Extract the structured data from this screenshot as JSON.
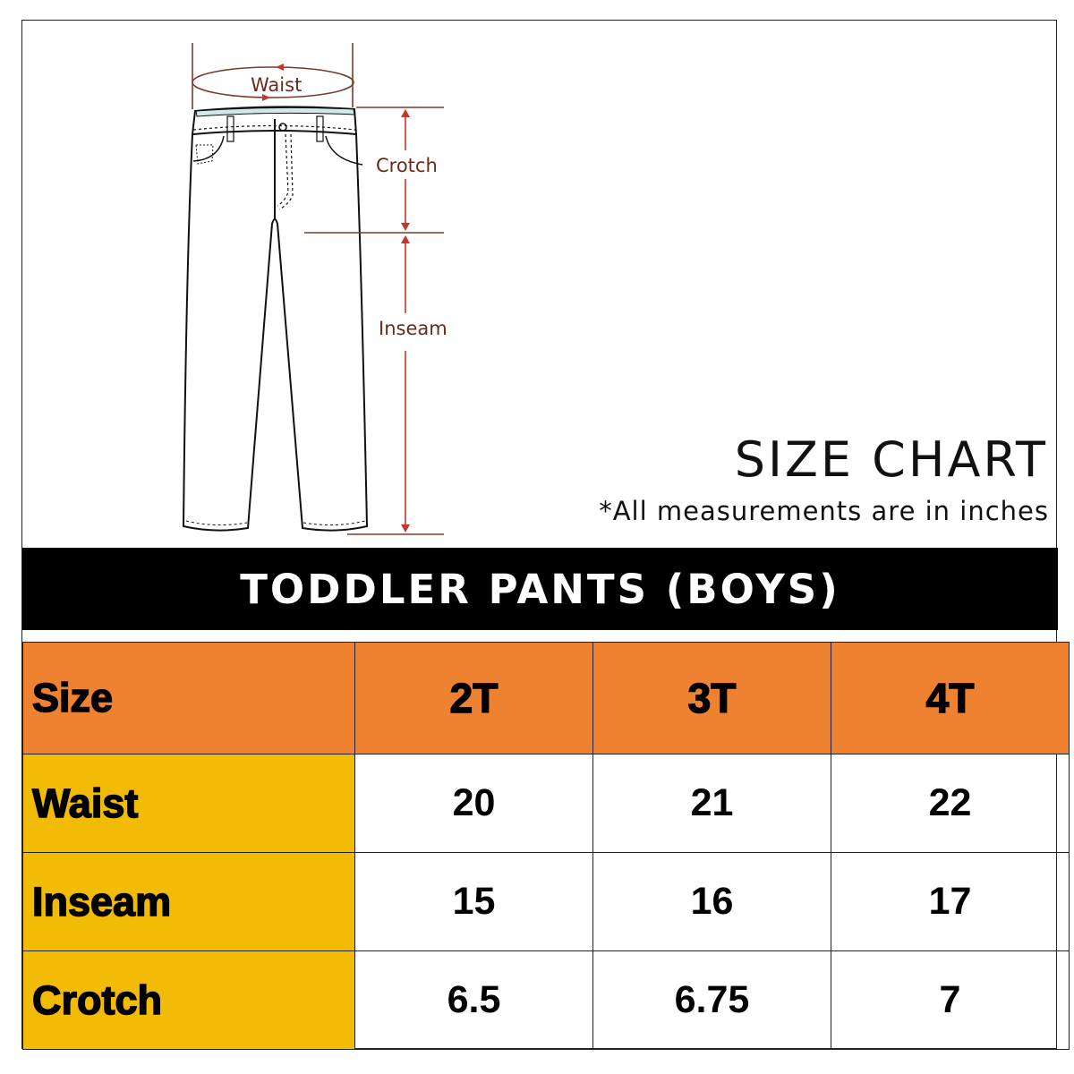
{
  "diagram": {
    "waist_label": "Waist",
    "crotch_label": "Crotch",
    "inseam_label": "Inseam"
  },
  "header": {
    "title": "SIZE CHART",
    "note": "*All measurements are in inches"
  },
  "banner": "TODDLER PANTS (BOYS)",
  "table": {
    "header": [
      "Size",
      "2T",
      "3T",
      "4T"
    ],
    "rows": [
      {
        "label": "Waist",
        "values": [
          "20",
          "21",
          "22"
        ]
      },
      {
        "label": "Inseam",
        "values": [
          "15",
          "16",
          "17"
        ]
      },
      {
        "label": "Crotch",
        "values": [
          "6.5",
          "6.75",
          "7"
        ]
      }
    ]
  },
  "colors": {
    "header_bg": "#EE8231",
    "label_bg": "#F2BB06",
    "measure_line": "#7a3b2a",
    "arrow": "#c0392b"
  }
}
